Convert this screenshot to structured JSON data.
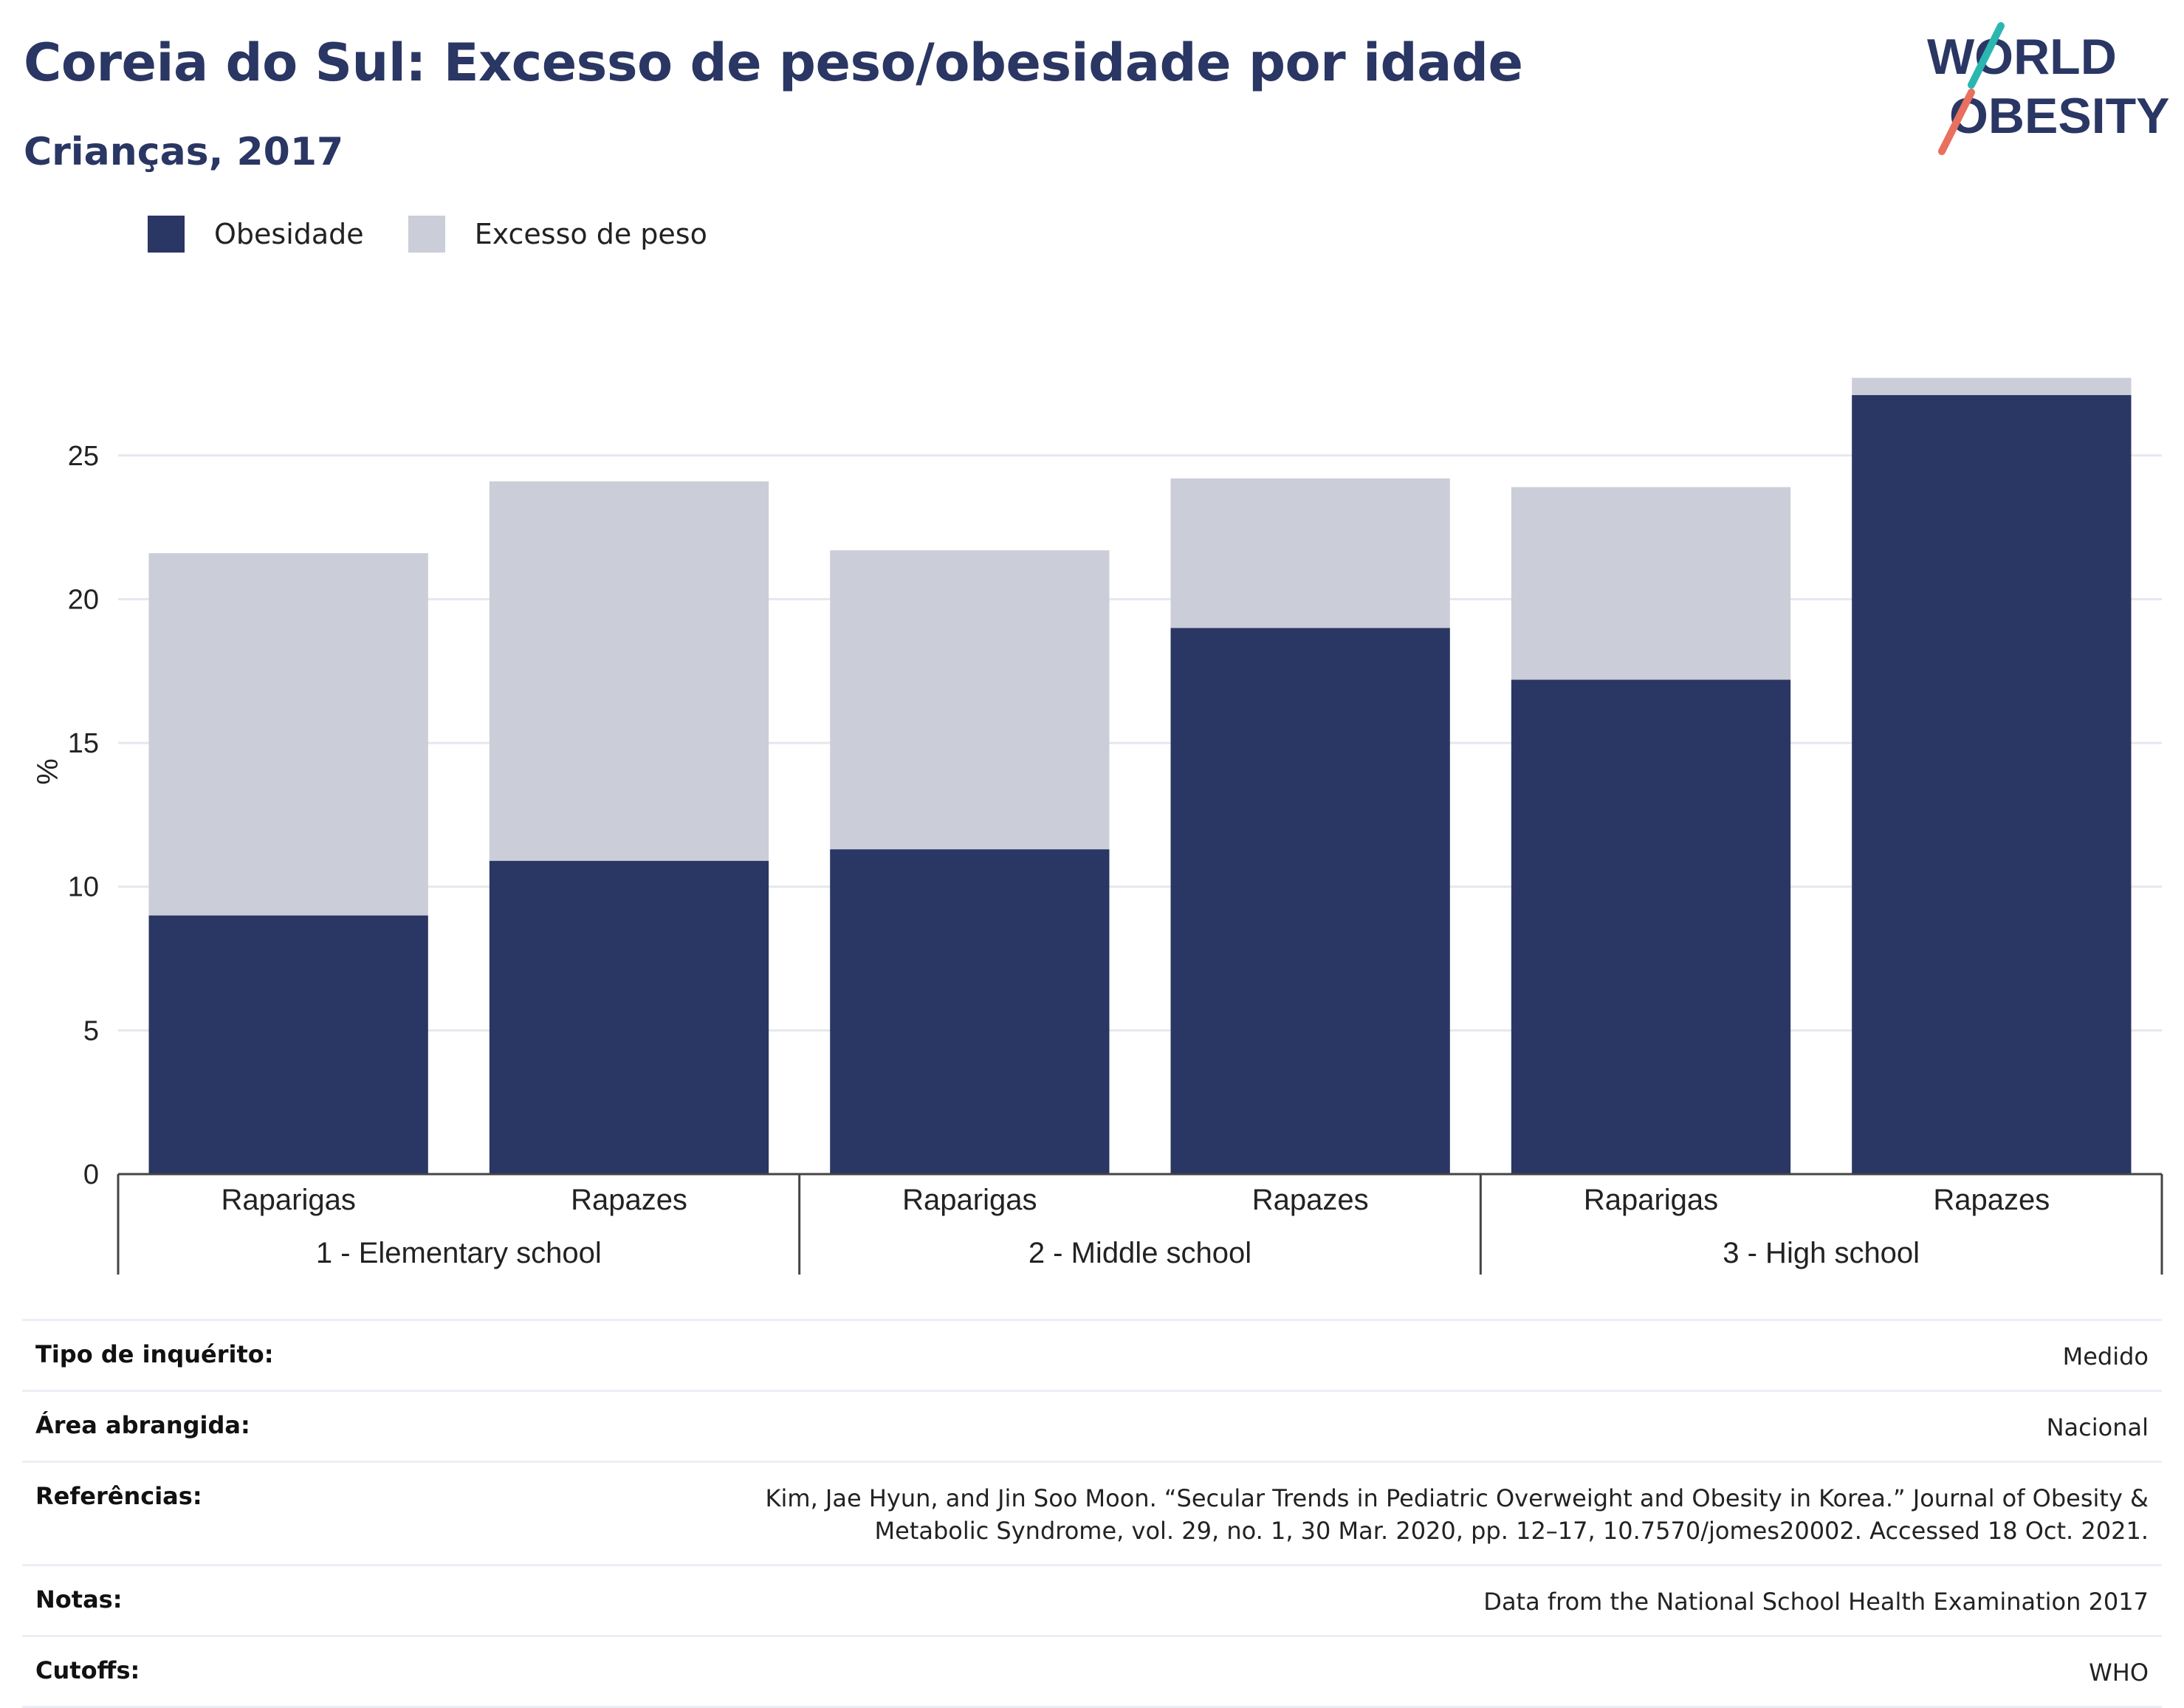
{
  "title": "Coreia do Sul: Excesso de peso/obesidade por idade",
  "subtitle": "Crianças, 2017",
  "logo": {
    "line1": "WORLD",
    "line2": "OBESITY"
  },
  "colors": {
    "obesity": "#2a3663",
    "overweight": "#cbcdd9",
    "title": "#2a3663"
  },
  "chart_data": {
    "type": "bar",
    "stacked": true,
    "ylabel": "%",
    "ylim": [
      0,
      28
    ],
    "yticks": [
      0,
      5,
      10,
      15,
      20,
      25
    ],
    "grid": true,
    "legend_position": "top-left",
    "categories": [
      "Raparigas",
      "Rapazes",
      "Raparigas",
      "Rapazes",
      "Raparigas",
      "Rapazes"
    ],
    "groups": [
      {
        "label": "1 - Elementary school",
        "span": 2
      },
      {
        "label": "2 - Middle school",
        "span": 2
      },
      {
        "label": "3 - High school",
        "span": 2
      }
    ],
    "series": [
      {
        "name": "Obesidade",
        "values": [
          9.0,
          10.9,
          11.3,
          19.0,
          17.2,
          27.1
        ]
      },
      {
        "name": "Excesso de peso",
        "values": [
          12.6,
          13.2,
          10.4,
          5.2,
          6.7,
          0.6
        ]
      }
    ]
  },
  "meta": [
    {
      "label": "Tipo de inquérito:",
      "value": "Medido"
    },
    {
      "label": "Área abrangida:",
      "value": "Nacional"
    },
    {
      "label": "Referências:",
      "value": "Kim, Jae Hyun, and Jin Soo Moon. “Secular Trends in Pediatric Overweight and Obesity in Korea.” Journal of Obesity & Metabolic Syndrome, vol. 29, no. 1, 30 Mar. 2020, pp. 12–17, 10.7570/jomes20002. Accessed 18 Oct. 2021."
    },
    {
      "label": "Notas:",
      "value": "Data from the National School Health Examination 2017"
    },
    {
      "label": "Cutoffs:",
      "value": "WHO"
    }
  ]
}
